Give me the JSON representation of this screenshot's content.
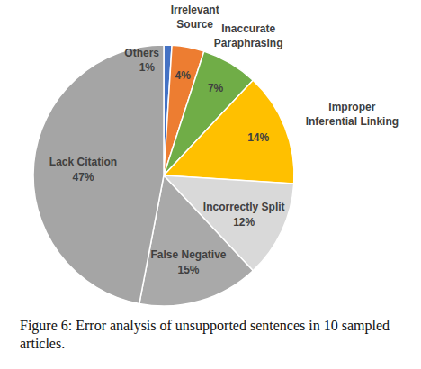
{
  "chart_data": {
    "type": "pie",
    "caption": "Figure 6: Error analysis of unsupported sentences in 10 sampled articles.",
    "categories": [
      "Others",
      "Irrelevant Source",
      "Inaccurate Paraphrasing",
      "Improper Inferential Linking",
      "Incorrectly Split",
      "False Negative",
      "Lack Citation"
    ],
    "values": [
      1,
      4,
      7,
      14,
      12,
      15,
      47
    ],
    "value_labels": [
      "1%",
      "4%",
      "7%",
      "14%",
      "12%",
      "15%",
      "47%"
    ],
    "colors": [
      "#4472c4",
      "#ed7d31",
      "#70ad47",
      "#ffc000",
      "#d9d9d9",
      "#a9a9a9",
      "#a5a5a5"
    ],
    "data_labels": true
  }
}
